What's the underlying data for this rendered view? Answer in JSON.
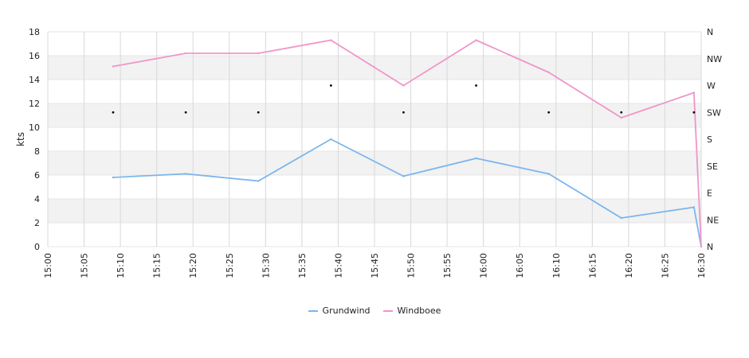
{
  "chart_data": {
    "type": "line",
    "ylabel": "kts",
    "ylim": [
      0,
      18
    ],
    "yticks": [
      "0",
      "2",
      "4",
      "6",
      "8",
      "10",
      "12",
      "14",
      "16",
      "18"
    ],
    "xticks": [
      "15:00",
      "15:05",
      "15:10",
      "15:15",
      "15:20",
      "15:25",
      "15:30",
      "15:35",
      "15:40",
      "15:45",
      "15:50",
      "15:55",
      "16:00",
      "16:05",
      "16:10",
      "16:15",
      "16:20",
      "16:25",
      "16:30"
    ],
    "x_range_minutes": [
      0,
      90
    ],
    "direction_ticks": [
      "N",
      "NE",
      "E",
      "SE",
      "S",
      "SW",
      "W",
      "NW",
      "N"
    ],
    "series": [
      {
        "name": "Grundwind",
        "color": "#7cb5ec",
        "points": [
          [
            "15:09",
            5.8
          ],
          [
            "15:19",
            6.1
          ],
          [
            "15:29",
            5.5
          ],
          [
            "15:39",
            9.0
          ],
          [
            "15:49",
            5.9
          ],
          [
            "15:59",
            7.4
          ],
          [
            "16:09",
            6.1
          ],
          [
            "16:19",
            2.4
          ],
          [
            "16:29",
            3.3
          ],
          [
            "16:30",
            0
          ]
        ]
      },
      {
        "name": "Windboee",
        "color": "#f095c8",
        "points": [
          [
            "15:09",
            15.1
          ],
          [
            "15:19",
            16.2
          ],
          [
            "15:29",
            16.2
          ],
          [
            "15:39",
            17.3
          ],
          [
            "15:49",
            13.5
          ],
          [
            "15:59",
            17.3
          ],
          [
            "16:09",
            14.6
          ],
          [
            "16:19",
            10.8
          ],
          [
            "16:29",
            12.9
          ],
          [
            "16:30",
            0
          ]
        ]
      }
    ],
    "direction_points": [
      [
        "15:09",
        "SW"
      ],
      [
        "15:19",
        "SW"
      ],
      [
        "15:29",
        "SW"
      ],
      [
        "15:39",
        "W"
      ],
      [
        "15:49",
        "SW"
      ],
      [
        "15:59",
        "W"
      ],
      [
        "16:09",
        "SW"
      ],
      [
        "16:19",
        "SW"
      ],
      [
        "16:29",
        "SW"
      ]
    ],
    "grid": true,
    "legend_position": "bottom-center"
  }
}
